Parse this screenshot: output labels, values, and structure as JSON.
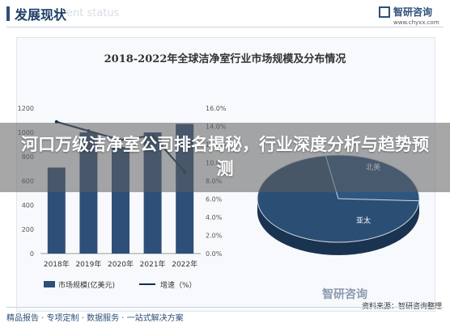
{
  "header": {
    "title": "发展现状",
    "subtitle_en": "ent status",
    "logo_name": "智研咨询",
    "logo_url": "www.chyxx.com"
  },
  "overlay": {
    "headline": "河口万级洁净室公司排名揭秘，行业深度分析与趋势预测"
  },
  "footer": {
    "links": "精品报告 · 专项定制 · 数据服务 · 一站式解决方案",
    "source": "资料来源：智研咨询整理",
    "source_logo": "智研咨询"
  },
  "chart_data": [
    {
      "type": "bar",
      "title": "2018-2022年全球洁净室行业市场规模及分布情况",
      "categories": [
        "2018年",
        "2019年",
        "2020年",
        "2021年",
        "2022年"
      ],
      "series": [
        {
          "name": "市场规模(亿美元)",
          "type": "bar",
          "values": [
            710,
            1000,
            880,
            1000,
            1070
          ],
          "color": "#2e4f78"
        },
        {
          "name": "增速（%）",
          "type": "line",
          "axis": "right",
          "values": [
            14.5,
            13.5,
            12.5,
            13.0,
            9.0
          ],
          "color": "#0f2f4f"
        }
      ],
      "ylim": [
        0,
        1200
      ],
      "yticks": [
        "0",
        "200",
        "400",
        "600",
        "800",
        "1000",
        "1200"
      ],
      "y2lim": [
        0,
        16
      ],
      "y2ticks": [
        "0.0%",
        "2.0%",
        "4.0%",
        "6.0%",
        "8.0%",
        "10.0%",
        "12.0%",
        "14.0%",
        "16.0%"
      ],
      "grid": false,
      "legend": "bottom"
    },
    {
      "type": "pie",
      "labels": [
        "北美",
        "亚太"
      ],
      "colors": [
        "#2e5680",
        "#2b4f74"
      ],
      "values": [
        33,
        42
      ]
    }
  ]
}
